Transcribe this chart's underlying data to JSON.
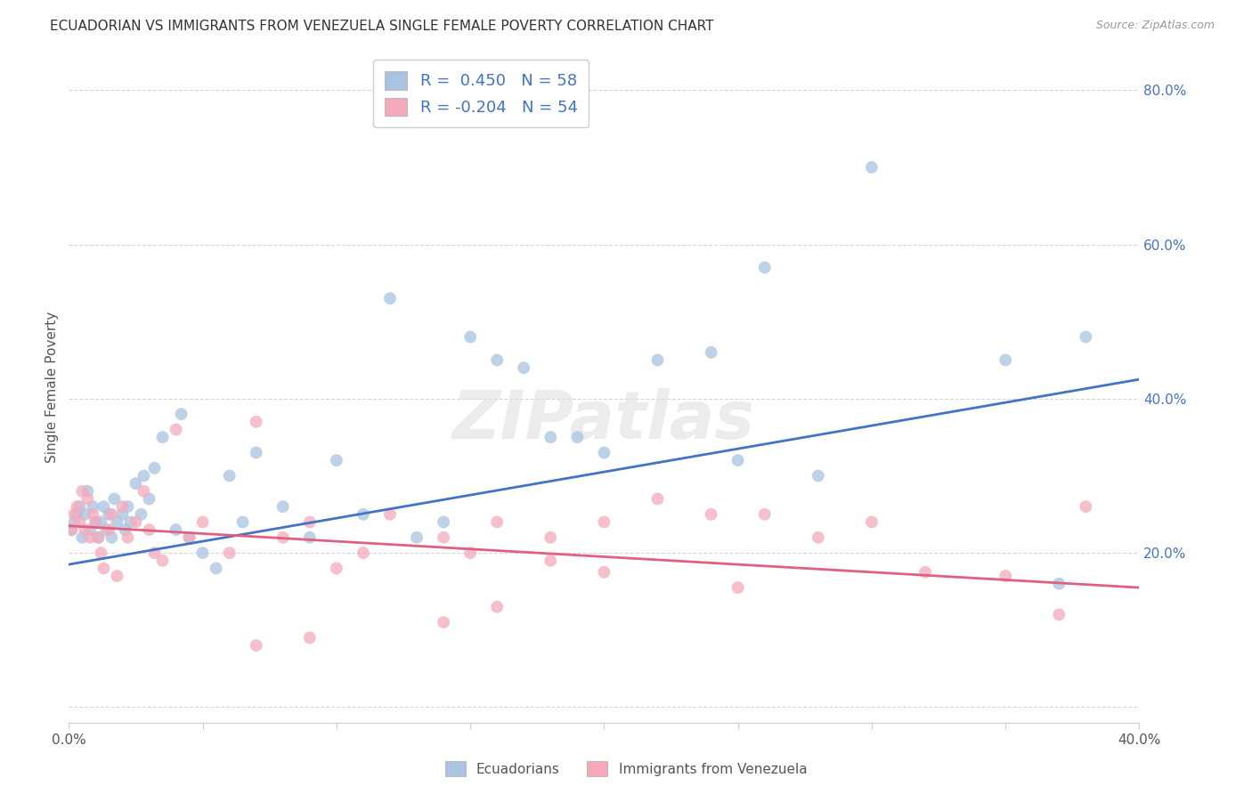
{
  "title": "ECUADORIAN VS IMMIGRANTS FROM VENEZUELA SINGLE FEMALE POVERTY CORRELATION CHART",
  "source": "Source: ZipAtlas.com",
  "ylabel": "Single Female Poverty",
  "watermark": "ZIPatlas",
  "blue_R": 0.45,
  "blue_N": 58,
  "pink_R": -0.204,
  "pink_N": 54,
  "blue_label": "Ecuadorians",
  "pink_label": "Immigrants from Venezuela",
  "blue_color": "#A8C4E0",
  "pink_color": "#F4AABC",
  "blue_line_color": "#4472C4",
  "pink_line_color": "#E06080",
  "xlim": [
    0.0,
    0.4
  ],
  "ylim": [
    -0.02,
    0.85
  ],
  "blue_line_x0": 0.0,
  "blue_line_y0": 0.185,
  "blue_line_x1": 0.4,
  "blue_line_y1": 0.425,
  "pink_line_x0": 0.0,
  "pink_line_y0": 0.235,
  "pink_line_x1": 0.4,
  "pink_line_y1": 0.155,
  "blue_x": [
    0.001,
    0.002,
    0.003,
    0.004,
    0.005,
    0.006,
    0.007,
    0.008,
    0.009,
    0.01,
    0.011,
    0.012,
    0.013,
    0.014,
    0.015,
    0.016,
    0.017,
    0.018,
    0.02,
    0.021,
    0.022,
    0.023,
    0.025,
    0.027,
    0.028,
    0.03,
    0.032,
    0.035,
    0.04,
    0.042,
    0.045,
    0.05,
    0.055,
    0.06,
    0.065,
    0.07,
    0.08,
    0.09,
    0.1,
    0.11,
    0.12,
    0.13,
    0.14,
    0.15,
    0.16,
    0.18,
    0.2,
    0.22,
    0.24,
    0.26,
    0.28,
    0.3,
    0.35,
    0.37,
    0.38,
    0.19,
    0.25,
    0.17
  ],
  "blue_y": [
    0.23,
    0.24,
    0.25,
    0.26,
    0.22,
    0.25,
    0.28,
    0.23,
    0.26,
    0.24,
    0.22,
    0.24,
    0.26,
    0.23,
    0.25,
    0.22,
    0.27,
    0.24,
    0.25,
    0.23,
    0.26,
    0.24,
    0.29,
    0.25,
    0.3,
    0.27,
    0.31,
    0.35,
    0.23,
    0.38,
    0.22,
    0.2,
    0.18,
    0.3,
    0.24,
    0.33,
    0.26,
    0.22,
    0.32,
    0.25,
    0.53,
    0.22,
    0.24,
    0.48,
    0.45,
    0.35,
    0.33,
    0.45,
    0.46,
    0.57,
    0.3,
    0.7,
    0.45,
    0.16,
    0.48,
    0.35,
    0.32,
    0.44
  ],
  "pink_x": [
    0.001,
    0.002,
    0.003,
    0.004,
    0.005,
    0.006,
    0.007,
    0.008,
    0.009,
    0.01,
    0.011,
    0.012,
    0.013,
    0.015,
    0.016,
    0.018,
    0.02,
    0.022,
    0.025,
    0.028,
    0.03,
    0.032,
    0.035,
    0.04,
    0.045,
    0.05,
    0.06,
    0.07,
    0.08,
    0.09,
    0.1,
    0.11,
    0.12,
    0.14,
    0.15,
    0.16,
    0.18,
    0.2,
    0.22,
    0.24,
    0.26,
    0.28,
    0.3,
    0.32,
    0.35,
    0.37,
    0.14,
    0.16,
    0.07,
    0.09,
    0.18,
    0.2,
    0.25,
    0.38
  ],
  "pink_y": [
    0.23,
    0.25,
    0.26,
    0.24,
    0.28,
    0.23,
    0.27,
    0.22,
    0.25,
    0.24,
    0.22,
    0.2,
    0.18,
    0.23,
    0.25,
    0.17,
    0.26,
    0.22,
    0.24,
    0.28,
    0.23,
    0.2,
    0.19,
    0.36,
    0.22,
    0.24,
    0.2,
    0.37,
    0.22,
    0.24,
    0.18,
    0.2,
    0.25,
    0.22,
    0.2,
    0.24,
    0.22,
    0.24,
    0.27,
    0.25,
    0.25,
    0.22,
    0.24,
    0.175,
    0.17,
    0.12,
    0.11,
    0.13,
    0.08,
    0.09,
    0.19,
    0.175,
    0.155,
    0.26
  ]
}
